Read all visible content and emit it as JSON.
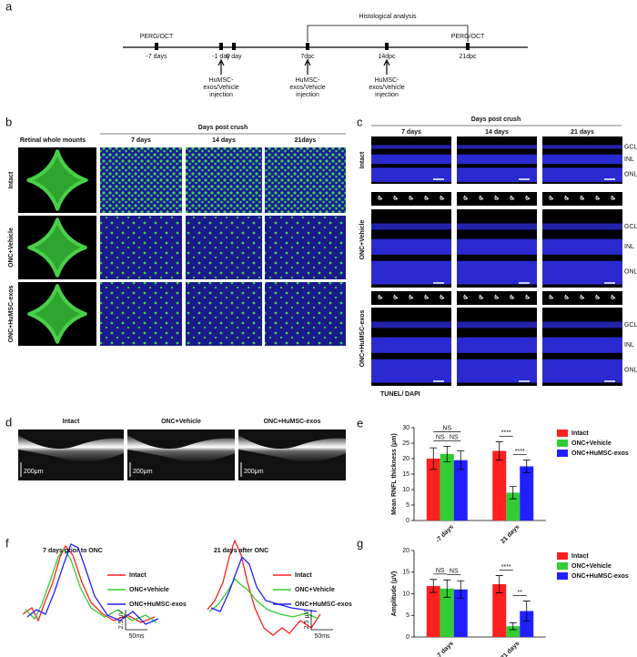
{
  "panel_labels": [
    "a",
    "b",
    "c",
    "d",
    "e",
    "f",
    "g"
  ],
  "timeline": {
    "section_label": "Histological analysis",
    "events": [
      {
        "above": "PERG/OCT",
        "label": "-7 days"
      },
      {
        "label": "-1 day"
      },
      {
        "label": "0 day"
      },
      {
        "label": "7dpc"
      },
      {
        "label": "14dpc"
      },
      {
        "above": "PERG/OCT",
        "label": "21dpc"
      }
    ],
    "injections": [
      [
        "HuMSC-",
        "exos/Vehicle",
        "injection"
      ],
      [
        "HuMSC-",
        "exos/Vehicle",
        "injection"
      ],
      [
        "HuMSC-",
        "exos/Vehicle",
        "injection"
      ]
    ]
  },
  "panel_b": {
    "column_header": "Retinal whole mounts",
    "span_header": "Days post crush",
    "columns": [
      "7 days",
      "14 days",
      "21days"
    ],
    "rows": [
      "Intact",
      "ONC+Vehicle",
      "ONC+HuMSC-exos"
    ]
  },
  "panel_c": {
    "span_header": "Days post crush",
    "columns": [
      "7 days",
      "14 days",
      "21 days"
    ],
    "rows": [
      "Intact",
      "ONC+Vehicle",
      "ONC+HuMSC-exos"
    ],
    "layers": [
      "GCL",
      "INL",
      "ONL"
    ],
    "stain": [
      "TUNEL/",
      "DAPI"
    ]
  },
  "panel_d": {
    "columns": [
      "Intact",
      "ONC+Vehicle",
      "ONC+HuMSC-exos"
    ],
    "scale": "200μm"
  },
  "panel_f": {
    "titles": [
      "7 days prior to ONC",
      "21 days after ONC"
    ],
    "legend": [
      "Intact",
      "ONC+Vehicle",
      "ONC+HuMSC-exos"
    ],
    "scale_y": "2.5 μV",
    "scale_x": "50ms"
  },
  "chart_data": [
    {
      "type": "bar",
      "y_label": "Mean RNFL thickness (μm)",
      "categories": [
        "-7 days",
        "21 days"
      ],
      "ylim": [
        0,
        30
      ],
      "yticks": [
        0,
        5,
        10,
        15,
        20,
        25,
        30
      ],
      "legend": "upper right",
      "series": [
        {
          "name": "Intact",
          "color": "#ff2020",
          "values": [
            20,
            22.5
          ],
          "errors": [
            3.5,
            3
          ]
        },
        {
          "name": "ONC+Vehicle",
          "color": "#33cc33",
          "values": [
            21.5,
            9
          ],
          "errors": [
            2.5,
            2
          ]
        },
        {
          "name": "ONC+HuMSC-exos",
          "color": "#2020ff",
          "values": [
            19.5,
            17.5
          ],
          "errors": [
            3,
            2
          ]
        }
      ],
      "annotations": [
        "NS",
        "NS",
        "NS",
        "****",
        "****"
      ]
    },
    {
      "type": "bar",
      "y_label": "Amplitude (μV)",
      "categories": [
        "-7 days",
        "21 days"
      ],
      "ylim": [
        0,
        20
      ],
      "yticks": [
        0,
        5,
        10,
        15,
        20
      ],
      "legend": "upper right",
      "series": [
        {
          "name": "Intact",
          "color": "#ff2020",
          "values": [
            11.8,
            12.2
          ],
          "errors": [
            1.5,
            2
          ]
        },
        {
          "name": "ONC+Vehicle",
          "color": "#33cc33",
          "values": [
            11.2,
            2.5
          ],
          "errors": [
            2,
            0.8
          ]
        },
        {
          "name": "ONC+HuMSC-exos",
          "color": "#2020ff",
          "values": [
            11,
            6
          ],
          "errors": [
            2,
            2.3
          ]
        }
      ],
      "annotations": [
        "NS",
        "NS",
        "****",
        "**"
      ]
    }
  ]
}
